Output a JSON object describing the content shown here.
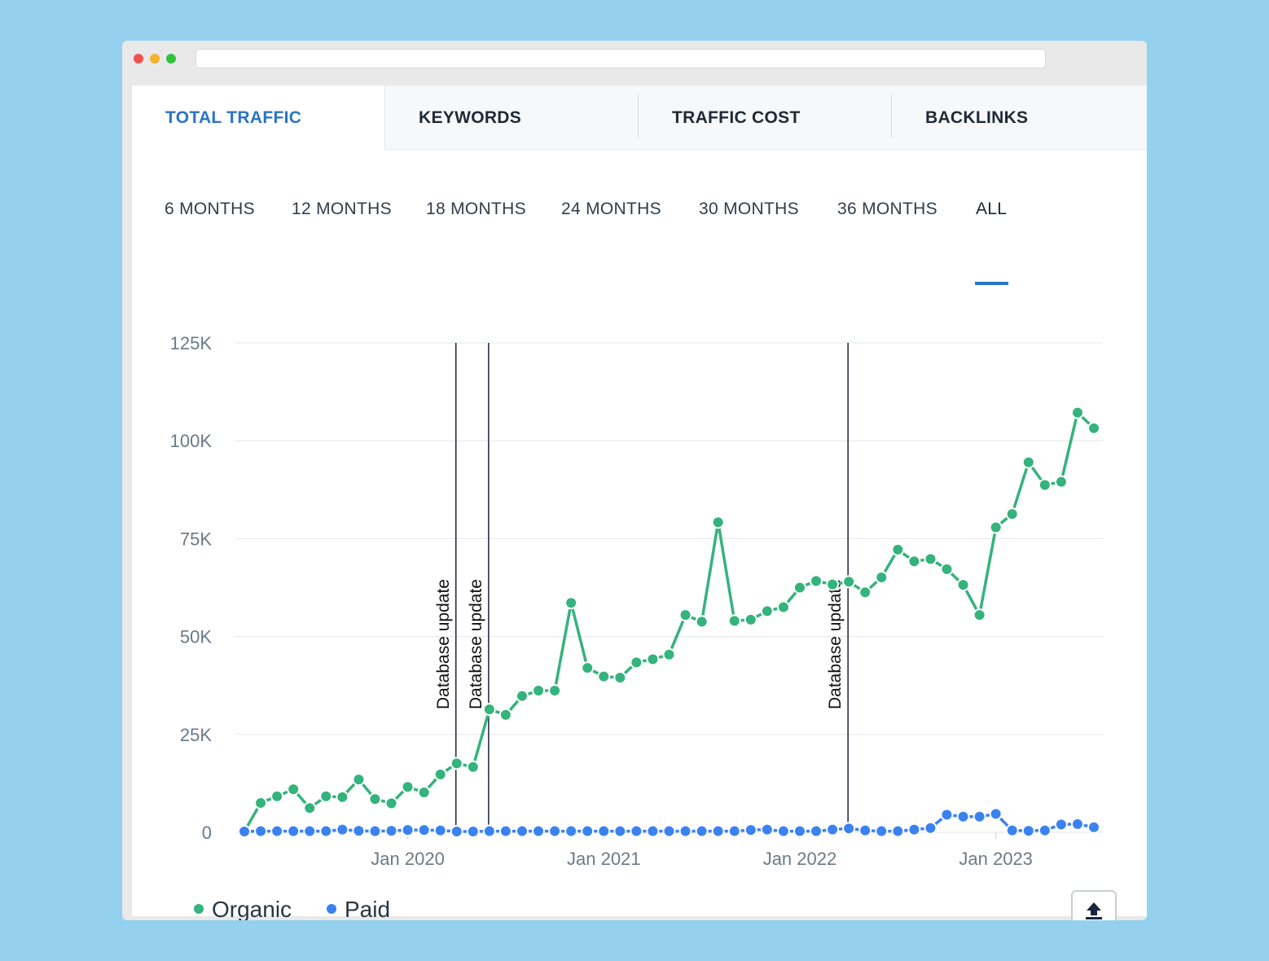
{
  "tabs": [
    {
      "label": "TOTAL TRAFFIC",
      "active": true
    },
    {
      "label": "KEYWORDS",
      "active": false
    },
    {
      "label": "TRAFFIC COST",
      "active": false
    },
    {
      "label": "BACKLINKS",
      "active": false
    }
  ],
  "periods": [
    {
      "label": "6 MONTHS",
      "active": false
    },
    {
      "label": "12 MONTHS",
      "active": false
    },
    {
      "label": "18 MONTHS",
      "active": false
    },
    {
      "label": "24 MONTHS",
      "active": false
    },
    {
      "label": "30 MONTHS",
      "active": false
    },
    {
      "label": "36 MONTHS",
      "active": false
    },
    {
      "label": "ALL",
      "active": true
    }
  ],
  "legend": {
    "organic_label": "Organic",
    "paid_label": "Paid"
  },
  "colors": {
    "accent": "#2b74c6",
    "organic": "#34b37c",
    "paid": "#3b82f0",
    "annotation": "#1b2540"
  },
  "export_icon": "upload-icon",
  "chart_data": {
    "type": "line",
    "title": "Total Traffic",
    "xlabel": "",
    "ylabel": "",
    "ylim": [
      0,
      125000
    ],
    "yticks": [
      0,
      25000,
      50000,
      75000,
      100000,
      125000
    ],
    "ytick_labels": [
      "0",
      "25K",
      "50K",
      "75K",
      "100K",
      "125K"
    ],
    "xticks": [
      {
        "index": 10,
        "label": "Jan 2020"
      },
      {
        "index": 22,
        "label": "Jan 2021"
      },
      {
        "index": 34,
        "label": "Jan 2022"
      },
      {
        "index": 46,
        "label": "Jan 2023"
      }
    ],
    "x_start": "Mar 2019",
    "x_end": "Jul 2023",
    "point_count": 53,
    "series": [
      {
        "name": "Organic",
        "color": "#34b37c",
        "values": [
          200,
          7500,
          9200,
          11000,
          6200,
          9200,
          9000,
          13500,
          8500,
          7400,
          11600,
          10200,
          14800,
          17600,
          16700,
          31400,
          30000,
          34800,
          36200,
          36200,
          58600,
          42000,
          39800,
          39500,
          43400,
          44200,
          45400,
          55500,
          53800,
          79200,
          54000,
          54300,
          56500,
          57500,
          62500,
          64200,
          63300,
          64000,
          61300,
          65100,
          72200,
          69200,
          69800,
          67200,
          63200,
          55500,
          77900,
          81300,
          94500,
          88700,
          89500,
          107200,
          103200
        ]
      },
      {
        "name": "Paid",
        "color": "#3b82f0",
        "values": [
          200,
          300,
          300,
          300,
          300,
          300,
          700,
          400,
          300,
          400,
          600,
          600,
          500,
          200,
          200,
          300,
          300,
          300,
          300,
          300,
          300,
          300,
          300,
          300,
          300,
          300,
          300,
          300,
          300,
          300,
          300,
          600,
          700,
          300,
          300,
          300,
          700,
          1000,
          500,
          300,
          300,
          700,
          1100,
          4500,
          4000,
          4000,
          4700,
          500,
          400,
          500,
          2000,
          2100,
          1300
        ]
      }
    ],
    "annotations": [
      {
        "index": 13,
        "label": "Database update"
      },
      {
        "index": 15,
        "label": "Database update"
      },
      {
        "index": 37,
        "label": "Database update"
      }
    ]
  }
}
